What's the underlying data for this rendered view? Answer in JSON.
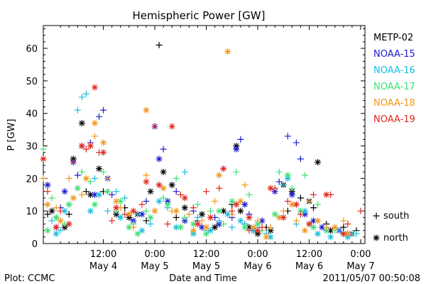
{
  "chart_data": {
    "type": "scatter",
    "title": "Hemispheric Power [GW]",
    "xlabel": "Date and Time",
    "ylabel": "P [GW]",
    "ylim": [
      0,
      67
    ],
    "y_ticks": [
      0,
      10,
      20,
      30,
      40,
      50,
      60
    ],
    "x_unit": "hours since 2011/05/03 22:00",
    "xlim": [
      0,
      75
    ],
    "x_ticks": [
      {
        "x": 14,
        "time": "12:00",
        "date": "May 4"
      },
      {
        "x": 26,
        "time": "0:00",
        "date": "May 5"
      },
      {
        "x": 38,
        "time": "12:00",
        "date": "May 5"
      },
      {
        "x": 50,
        "time": "0:00",
        "date": "May 6"
      },
      {
        "x": 62,
        "time": "12:00",
        "date": "May 6"
      },
      {
        "x": 74,
        "time": "0:00",
        "date": "May 7"
      }
    ],
    "legend_position": "right",
    "marker_legend": [
      {
        "symbol": "+",
        "label": "south"
      },
      {
        "symbol": "*",
        "label": "north"
      }
    ],
    "series": [
      {
        "name": "METP-02",
        "color": "#000000",
        "south": [
          [
            1,
            9
          ],
          [
            3,
            8
          ],
          [
            6,
            9
          ],
          [
            10,
            16
          ],
          [
            14,
            16
          ],
          [
            19,
            11
          ],
          [
            24,
            7
          ],
          [
            27,
            61
          ],
          [
            31,
            8
          ],
          [
            36,
            7
          ],
          [
            41,
            6
          ],
          [
            44,
            12
          ],
          [
            47,
            6
          ],
          [
            52,
            5
          ],
          [
            57,
            10
          ],
          [
            60,
            14
          ],
          [
            63,
            11
          ],
          [
            66,
            6
          ],
          [
            70,
            5
          ],
          [
            73,
            4
          ]
        ],
        "north": [
          [
            2,
            10
          ],
          [
            5,
            5
          ],
          [
            7,
            26
          ],
          [
            9,
            37
          ],
          [
            11,
            15
          ],
          [
            13,
            23
          ],
          [
            17,
            9
          ],
          [
            20,
            8
          ],
          [
            22,
            9
          ],
          [
            25,
            16
          ],
          [
            28,
            22
          ],
          [
            30,
            18
          ],
          [
            33,
            11
          ],
          [
            37,
            9
          ],
          [
            40,
            5
          ],
          [
            42,
            10
          ],
          [
            45,
            30
          ],
          [
            46,
            10
          ],
          [
            48,
            5
          ],
          [
            50,
            3
          ],
          [
            53,
            4
          ],
          [
            56,
            18
          ],
          [
            58,
            16
          ],
          [
            62,
            13
          ],
          [
            64,
            25
          ],
          [
            67,
            4
          ],
          [
            71,
            3
          ]
        ]
      },
      {
        "name": "NOAA-15",
        "color": "#1b1bd0",
        "south": [
          [
            4,
            11
          ],
          [
            8,
            21
          ],
          [
            11,
            31
          ],
          [
            13,
            39
          ],
          [
            14,
            41
          ],
          [
            16,
            15
          ],
          [
            24,
            13
          ],
          [
            28,
            29
          ],
          [
            31,
            16
          ],
          [
            35,
            10
          ],
          [
            40,
            8
          ],
          [
            44,
            8
          ],
          [
            46,
            32
          ],
          [
            48,
            9
          ],
          [
            55,
            19
          ],
          [
            57,
            33
          ],
          [
            59,
            31
          ],
          [
            60,
            26
          ],
          [
            66,
            4
          ],
          [
            70,
            3
          ]
        ],
        "north": [
          [
            1,
            18
          ],
          [
            3,
            5
          ],
          [
            5,
            16
          ],
          [
            7,
            25
          ],
          [
            9,
            30
          ],
          [
            12,
            15
          ],
          [
            15,
            20
          ],
          [
            21,
            7
          ],
          [
            23,
            9
          ],
          [
            26,
            36
          ],
          [
            27,
            26
          ],
          [
            29,
            13
          ],
          [
            33,
            7
          ],
          [
            37,
            5
          ],
          [
            41,
            6
          ],
          [
            45,
            29
          ],
          [
            47,
            12
          ],
          [
            49,
            4
          ],
          [
            51,
            7
          ],
          [
            54,
            16
          ],
          [
            58,
            15
          ],
          [
            61,
            9
          ],
          [
            63,
            7
          ],
          [
            65,
            5
          ],
          [
            69,
            4
          ],
          [
            72,
            3
          ]
        ]
      },
      {
        "name": "NOAA-16",
        "color": "#19bde0",
        "south": [
          [
            2,
            7
          ],
          [
            4,
            4
          ],
          [
            6,
            12
          ],
          [
            8,
            41
          ],
          [
            9,
            45
          ],
          [
            10,
            46
          ],
          [
            12,
            20
          ],
          [
            15,
            10
          ],
          [
            17,
            16
          ],
          [
            19,
            14
          ],
          [
            22,
            9
          ],
          [
            25,
            6
          ],
          [
            29,
            11
          ],
          [
            33,
            22
          ],
          [
            36,
            8
          ],
          [
            38,
            4
          ],
          [
            41,
            7
          ],
          [
            44,
            5
          ],
          [
            47,
            6
          ],
          [
            50,
            5
          ],
          [
            52,
            3
          ],
          [
            56,
            18
          ],
          [
            59,
            6
          ],
          [
            62,
            6
          ],
          [
            66,
            5
          ],
          [
            69,
            4
          ],
          [
            73,
            3
          ]
        ],
        "north": [
          [
            3,
            3
          ],
          [
            5,
            10
          ],
          [
            11,
            10
          ],
          [
            13,
            15
          ],
          [
            18,
            8
          ],
          [
            23,
            4
          ],
          [
            27,
            13
          ],
          [
            31,
            5
          ],
          [
            35,
            3
          ],
          [
            39,
            4
          ],
          [
            43,
            9
          ],
          [
            46,
            7
          ],
          [
            49,
            4
          ],
          [
            53,
            2
          ],
          [
            57,
            20
          ],
          [
            61,
            10
          ],
          [
            64,
            3
          ],
          [
            67,
            2
          ],
          [
            71,
            2
          ]
        ]
      },
      {
        "name": "NOAA-17",
        "color": "#3ee077",
        "south": [
          [
            0,
            29
          ],
          [
            2,
            14
          ],
          [
            5,
            6
          ],
          [
            9,
            22
          ],
          [
            11,
            19
          ],
          [
            14,
            22
          ],
          [
            17,
            10
          ],
          [
            21,
            6
          ],
          [
            24,
            10
          ],
          [
            28,
            14
          ],
          [
            31,
            20
          ],
          [
            33,
            8
          ],
          [
            36,
            12
          ],
          [
            39,
            10
          ],
          [
            42,
            6
          ],
          [
            45,
            22
          ],
          [
            48,
            15
          ],
          [
            51,
            4
          ],
          [
            55,
            22
          ],
          [
            58,
            17
          ],
          [
            61,
            21
          ],
          [
            64,
            12
          ],
          [
            68,
            4
          ],
          [
            72,
            3
          ]
        ],
        "north": [
          [
            1,
            4
          ],
          [
            3,
            8
          ],
          [
            6,
            12
          ],
          [
            8,
            17
          ],
          [
            12,
            12
          ],
          [
            15,
            16
          ],
          [
            18,
            13
          ],
          [
            20,
            5
          ],
          [
            22,
            3
          ],
          [
            25,
            8
          ],
          [
            29,
            12
          ],
          [
            32,
            5
          ],
          [
            35,
            6
          ],
          [
            38,
            3
          ],
          [
            41,
            10
          ],
          [
            44,
            13
          ],
          [
            47,
            5
          ],
          [
            50,
            6
          ],
          [
            54,
            9
          ],
          [
            57,
            21
          ],
          [
            60,
            10
          ],
          [
            63,
            5
          ],
          [
            66,
            4
          ],
          [
            70,
            3
          ]
        ]
      },
      {
        "name": "NOAA-18",
        "color": "#f0961e",
        "south": [
          [
            0,
            20
          ],
          [
            3,
            11
          ],
          [
            6,
            20
          ],
          [
            9,
            15
          ],
          [
            12,
            33
          ],
          [
            15,
            20
          ],
          [
            18,
            11
          ],
          [
            21,
            5
          ],
          [
            24,
            21
          ],
          [
            27,
            18
          ],
          [
            30,
            10
          ],
          [
            34,
            9
          ],
          [
            37,
            7
          ],
          [
            40,
            13
          ],
          [
            44,
            9
          ],
          [
            47,
            18
          ],
          [
            50,
            7
          ],
          [
            53,
            5
          ],
          [
            56,
            10
          ],
          [
            59,
            7
          ],
          [
            62,
            13
          ],
          [
            66,
            5
          ],
          [
            70,
            7
          ]
        ],
        "north": [
          [
            1,
            12
          ],
          [
            4,
            7
          ],
          [
            7,
            14
          ],
          [
            10,
            20
          ],
          [
            12,
            37
          ],
          [
            14,
            31
          ],
          [
            17,
            13
          ],
          [
            20,
            9
          ],
          [
            24,
            41
          ],
          [
            26,
            10
          ],
          [
            28,
            17
          ],
          [
            31,
            10
          ],
          [
            35,
            4
          ],
          [
            38,
            5
          ],
          [
            41,
            21
          ],
          [
            43,
            59
          ],
          [
            46,
            13
          ],
          [
            49,
            5
          ],
          [
            52,
            2
          ],
          [
            55,
            8
          ],
          [
            58,
            12
          ],
          [
            61,
            4
          ],
          [
            64,
            7
          ],
          [
            68,
            5
          ],
          [
            71,
            3
          ]
        ]
      },
      {
        "name": "NOAA-19",
        "color": "#e0281e",
        "south": [
          [
            1,
            16
          ],
          [
            4,
            10
          ],
          [
            7,
            25
          ],
          [
            10,
            29
          ],
          [
            13,
            28
          ],
          [
            16,
            7
          ],
          [
            19,
            9
          ],
          [
            23,
            12
          ],
          [
            26,
            36
          ],
          [
            29,
            6
          ],
          [
            32,
            15
          ],
          [
            35,
            11
          ],
          [
            38,
            16
          ],
          [
            41,
            17
          ],
          [
            44,
            10
          ],
          [
            48,
            4
          ],
          [
            51,
            5
          ],
          [
            54,
            17
          ],
          [
            57,
            13
          ],
          [
            60,
            9
          ],
          [
            63,
            15
          ],
          [
            67,
            15
          ],
          [
            71,
            6
          ],
          [
            74,
            10
          ]
        ],
        "north": [
          [
            0,
            26
          ],
          [
            3,
            5
          ],
          [
            6,
            6
          ],
          [
            9,
            30
          ],
          [
            11,
            30
          ],
          [
            12,
            48
          ],
          [
            14,
            28
          ],
          [
            17,
            11
          ],
          [
            21,
            10
          ],
          [
            24,
            19
          ],
          [
            27,
            18
          ],
          [
            30,
            36
          ],
          [
            33,
            14
          ],
          [
            36,
            6
          ],
          [
            39,
            8
          ],
          [
            42,
            23
          ],
          [
            45,
            12
          ],
          [
            48,
            8
          ],
          [
            50,
            4
          ],
          [
            53,
            17
          ],
          [
            56,
            8
          ],
          [
            59,
            12
          ],
          [
            62,
            6
          ],
          [
            66,
            15
          ],
          [
            70,
            3
          ]
        ]
      }
    ]
  },
  "footer": {
    "left": "Plot: CCMC",
    "right": "2011/05/07 00:50:08"
  }
}
